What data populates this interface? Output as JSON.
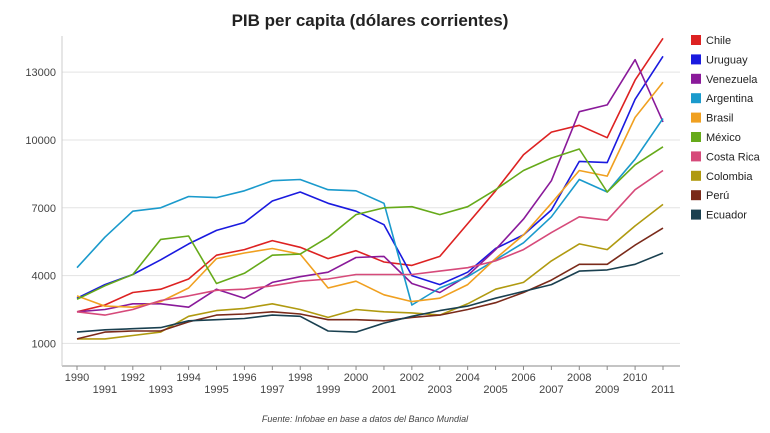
{
  "chart_data": {
    "type": "line",
    "title": "PIB per capita (dólares corrientes)",
    "source": "Fuente: Infobae en base a datos del Banco Mundial",
    "xlabel": "",
    "ylabel": "",
    "x": [
      1990,
      1991,
      1992,
      1993,
      1994,
      1995,
      1996,
      1997,
      1998,
      1999,
      2000,
      2001,
      2002,
      2003,
      2004,
      2005,
      2006,
      2007,
      2008,
      2009,
      2010,
      2011
    ],
    "x_ticks": [
      "1990",
      "1991",
      "1992",
      "1993",
      "1994",
      "1995",
      "1996",
      "1997",
      "1998",
      "1999",
      "2000",
      "2001",
      "2002",
      "2003",
      "2004",
      "2005",
      "2006",
      "2007",
      "2008",
      "2009",
      "2010",
      "2011"
    ],
    "y_ticks": [
      "1000",
      "4000",
      "7000",
      "10000",
      "13000"
    ],
    "y_tick_values": [
      1000,
      4000,
      7000,
      10000,
      13000
    ],
    "ylim": [
      0,
      14600
    ],
    "grid": true,
    "legend_position": "right",
    "series": [
      {
        "name": "Chile",
        "color": "#dd2222",
        "values": [
          2400,
          2700,
          3250,
          3400,
          3850,
          4900,
          5150,
          5550,
          5250,
          4750,
          5100,
          4600,
          4450,
          4850,
          6300,
          7750,
          9350,
          10350,
          10650,
          10100,
          12650,
          14500
        ]
      },
      {
        "name": "Uruguay",
        "color": "#1a1adf",
        "values": [
          3000,
          3600,
          4050,
          4700,
          5400,
          6000,
          6350,
          7300,
          7700,
          7200,
          6850,
          6250,
          4000,
          3600,
          4150,
          5200,
          5800,
          6900,
          9050,
          9000,
          11800,
          13700
        ]
      },
      {
        "name": "Venezuela",
        "color": "#8a1a9a",
        "values": [
          2400,
          2500,
          2750,
          2750,
          2600,
          3400,
          3000,
          3700,
          3950,
          4150,
          4800,
          4850,
          3650,
          3250,
          4000,
          5150,
          6500,
          8200,
          11250,
          11550,
          13550,
          10800
        ]
      },
      {
        "name": "Argentina",
        "color": "#1a9acc",
        "values": [
          4350,
          5700,
          6850,
          7000,
          7500,
          7450,
          7750,
          8200,
          8250,
          7800,
          7750,
          7200,
          2700,
          3450,
          3950,
          4700,
          5450,
          6600,
          8250,
          7700,
          9150,
          10950
        ]
      },
      {
        "name": "Brasil",
        "color": "#f0a020",
        "values": [
          3100,
          2650,
          2600,
          2850,
          3450,
          4750,
          5000,
          5200,
          4950,
          3450,
          3750,
          3150,
          2850,
          3000,
          3600,
          4750,
          5800,
          7200,
          8650,
          8400,
          11000,
          12550
        ]
      },
      {
        "name": "México",
        "color": "#66aa1a",
        "values": [
          2950,
          3550,
          4050,
          5600,
          5750,
          3650,
          4100,
          4900,
          4950,
          5700,
          6700,
          7000,
          7050,
          6700,
          7050,
          7800,
          8650,
          9200,
          9600,
          7700,
          8900,
          9700
        ]
      },
      {
        "name": "Costa Rica",
        "color": "#d64a7a",
        "values": [
          2400,
          2250,
          2500,
          2900,
          3100,
          3350,
          3400,
          3550,
          3750,
          3850,
          4050,
          4050,
          4050,
          4200,
          4350,
          4650,
          5150,
          5900,
          6600,
          6450,
          7800,
          8650
        ]
      },
      {
        "name": "Colombia",
        "color": "#b09a10",
        "values": [
          1200,
          1200,
          1350,
          1500,
          2200,
          2450,
          2550,
          2750,
          2500,
          2150,
          2500,
          2400,
          2350,
          2250,
          2750,
          3400,
          3700,
          4650,
          5400,
          5150,
          6200,
          7150
        ]
      },
      {
        "name": "Perú",
        "color": "#7a2a1a",
        "values": [
          1200,
          1500,
          1550,
          1550,
          1950,
          2250,
          2300,
          2400,
          2300,
          2050,
          2050,
          2000,
          2150,
          2250,
          2500,
          2800,
          3250,
          3800,
          4500,
          4500,
          5350,
          6100
        ]
      },
      {
        "name": "Ecuador",
        "color": "#1a4050",
        "values": [
          1500,
          1600,
          1650,
          1700,
          2000,
          2050,
          2100,
          2250,
          2200,
          1550,
          1500,
          1900,
          2200,
          2450,
          2650,
          3000,
          3300,
          3600,
          4200,
          4250,
          4500,
          5000
        ]
      }
    ]
  }
}
